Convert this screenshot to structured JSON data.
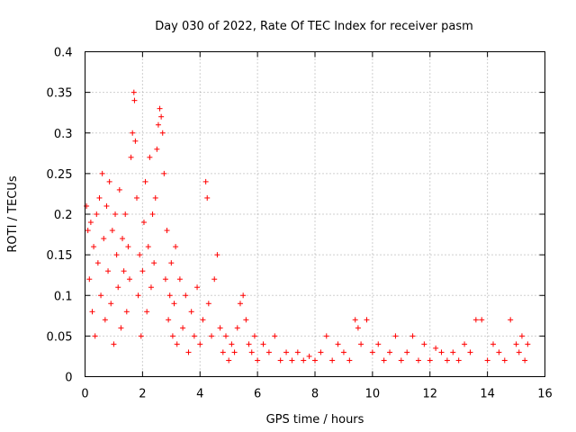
{
  "chart_data": {
    "type": "scatter",
    "title": "Day 030 of 2022, Rate Of TEC Index for receiver pasm",
    "xlabel": "GPS time / hours",
    "ylabel": "ROTI / TECUs",
    "xlim": [
      0,
      16
    ],
    "ylim": [
      0,
      0.4
    ],
    "xticks": [
      0,
      2,
      4,
      6,
      8,
      10,
      12,
      14,
      16
    ],
    "yticks": [
      0,
      0.05,
      0.1,
      0.15,
      0.2,
      0.25,
      0.3,
      0.35,
      0.4
    ],
    "xtick_labels": [
      "0",
      "2",
      "4",
      "6",
      "8",
      "10",
      "12",
      "14",
      "16"
    ],
    "ytick_labels": [
      "0",
      "0.05",
      "0.1",
      "0.15",
      "0.2",
      "0.25",
      "0.3",
      "0.35",
      "0.4"
    ],
    "grid": true,
    "marker": "+",
    "color": "#ff0000",
    "series": [
      {
        "name": "ROTI",
        "points": [
          [
            0.05,
            0.21
          ],
          [
            0.1,
            0.18
          ],
          [
            0.15,
            0.12
          ],
          [
            0.2,
            0.19
          ],
          [
            0.25,
            0.08
          ],
          [
            0.3,
            0.16
          ],
          [
            0.35,
            0.05
          ],
          [
            0.4,
            0.2
          ],
          [
            0.45,
            0.14
          ],
          [
            0.5,
            0.22
          ],
          [
            0.55,
            0.1
          ],
          [
            0.6,
            0.25
          ],
          [
            0.65,
            0.17
          ],
          [
            0.7,
            0.07
          ],
          [
            0.75,
            0.21
          ],
          [
            0.8,
            0.13
          ],
          [
            0.85,
            0.24
          ],
          [
            0.9,
            0.09
          ],
          [
            0.95,
            0.18
          ],
          [
            1.0,
            0.04
          ],
          [
            1.05,
            0.2
          ],
          [
            1.1,
            0.15
          ],
          [
            1.15,
            0.11
          ],
          [
            1.2,
            0.23
          ],
          [
            1.25,
            0.06
          ],
          [
            1.3,
            0.17
          ],
          [
            1.35,
            0.13
          ],
          [
            1.4,
            0.2
          ],
          [
            1.45,
            0.08
          ],
          [
            1.5,
            0.16
          ],
          [
            1.55,
            0.12
          ],
          [
            1.6,
            0.27
          ],
          [
            1.65,
            0.3
          ],
          [
            1.7,
            0.35
          ],
          [
            1.72,
            0.34
          ],
          [
            1.75,
            0.29
          ],
          [
            1.8,
            0.22
          ],
          [
            1.85,
            0.1
          ],
          [
            1.9,
            0.15
          ],
          [
            1.95,
            0.05
          ],
          [
            2.0,
            0.13
          ],
          [
            2.05,
            0.19
          ],
          [
            2.1,
            0.24
          ],
          [
            2.15,
            0.08
          ],
          [
            2.2,
            0.16
          ],
          [
            2.25,
            0.27
          ],
          [
            2.3,
            0.11
          ],
          [
            2.35,
            0.2
          ],
          [
            2.4,
            0.14
          ],
          [
            2.45,
            0.22
          ],
          [
            2.5,
            0.28
          ],
          [
            2.55,
            0.31
          ],
          [
            2.6,
            0.33
          ],
          [
            2.65,
            0.32
          ],
          [
            2.7,
            0.3
          ],
          [
            2.75,
            0.25
          ],
          [
            2.8,
            0.12
          ],
          [
            2.85,
            0.18
          ],
          [
            2.9,
            0.07
          ],
          [
            2.95,
            0.1
          ],
          [
            3.0,
            0.14
          ],
          [
            3.05,
            0.05
          ],
          [
            3.1,
            0.09
          ],
          [
            3.15,
            0.16
          ],
          [
            3.2,
            0.04
          ],
          [
            3.3,
            0.12
          ],
          [
            3.4,
            0.06
          ],
          [
            3.5,
            0.1
          ],
          [
            3.6,
            0.03
          ],
          [
            3.7,
            0.08
          ],
          [
            3.8,
            0.05
          ],
          [
            3.9,
            0.11
          ],
          [
            4.0,
            0.04
          ],
          [
            4.1,
            0.07
          ],
          [
            4.2,
            0.24
          ],
          [
            4.25,
            0.22
          ],
          [
            4.3,
            0.09
          ],
          [
            4.4,
            0.05
          ],
          [
            4.5,
            0.12
          ],
          [
            4.6,
            0.15
          ],
          [
            4.7,
            0.06
          ],
          [
            4.8,
            0.03
          ],
          [
            4.9,
            0.05
          ],
          [
            5.0,
            0.02
          ],
          [
            5.1,
            0.04
          ],
          [
            5.2,
            0.03
          ],
          [
            5.3,
            0.06
          ],
          [
            5.4,
            0.09
          ],
          [
            5.5,
            0.1
          ],
          [
            5.6,
            0.07
          ],
          [
            5.7,
            0.04
          ],
          [
            5.8,
            0.03
          ],
          [
            5.9,
            0.05
          ],
          [
            6.0,
            0.02
          ],
          [
            6.2,
            0.04
          ],
          [
            6.4,
            0.03
          ],
          [
            6.6,
            0.05
          ],
          [
            6.8,
            0.02
          ],
          [
            7.0,
            0.03
          ],
          [
            7.2,
            0.02
          ],
          [
            7.4,
            0.03
          ],
          [
            7.6,
            0.02
          ],
          [
            7.8,
            0.025
          ],
          [
            8.0,
            0.02
          ],
          [
            8.2,
            0.03
          ],
          [
            8.4,
            0.05
          ],
          [
            8.6,
            0.02
          ],
          [
            8.8,
            0.04
          ],
          [
            9.0,
            0.03
          ],
          [
            9.2,
            0.02
          ],
          [
            9.4,
            0.07
          ],
          [
            9.5,
            0.06
          ],
          [
            9.6,
            0.04
          ],
          [
            9.8,
            0.07
          ],
          [
            10.0,
            0.03
          ],
          [
            10.2,
            0.04
          ],
          [
            10.4,
            0.02
          ],
          [
            10.6,
            0.03
          ],
          [
            10.8,
            0.05
          ],
          [
            11.0,
            0.02
          ],
          [
            11.2,
            0.03
          ],
          [
            11.4,
            0.05
          ],
          [
            11.6,
            0.02
          ],
          [
            11.8,
            0.04
          ],
          [
            12.0,
            0.02
          ],
          [
            12.2,
            0.035
          ],
          [
            12.4,
            0.03
          ],
          [
            12.6,
            0.02
          ],
          [
            12.8,
            0.03
          ],
          [
            13.0,
            0.02
          ],
          [
            13.2,
            0.04
          ],
          [
            13.4,
            0.03
          ],
          [
            13.6,
            0.07
          ],
          [
            13.8,
            0.07
          ],
          [
            14.0,
            0.02
          ],
          [
            14.2,
            0.04
          ],
          [
            14.4,
            0.03
          ],
          [
            14.6,
            0.02
          ],
          [
            14.8,
            0.07
          ],
          [
            15.0,
            0.04
          ],
          [
            15.1,
            0.03
          ],
          [
            15.2,
            0.05
          ],
          [
            15.3,
            0.02
          ],
          [
            15.4,
            0.04
          ]
        ]
      }
    ]
  }
}
